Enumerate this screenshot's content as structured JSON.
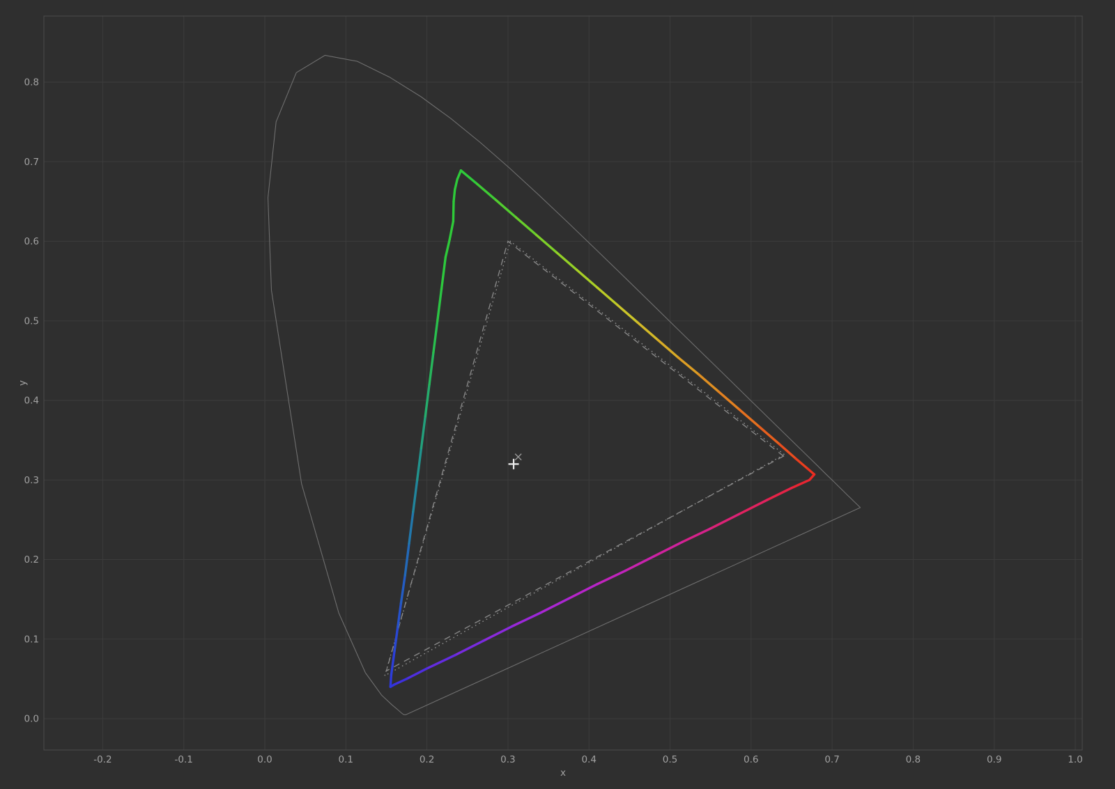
{
  "figure": {
    "background_color": "#2f2f2f",
    "grid_color": "#3c3c3c",
    "border_color": "#4b4b4b",
    "tick_label_color": "#a2a2a2",
    "locus_color": "#6f6f6f",
    "dashed_reference_color": "#878787",
    "dotted_reference_color": "#909090"
  },
  "chart_data": {
    "type": "line",
    "title": "",
    "xlabel": "x",
    "ylabel": "y",
    "xlim": [
      -0.273,
      1.009
    ],
    "ylim": [
      -0.039,
      0.883
    ],
    "grid": true,
    "legend": "none",
    "x_ticks": [
      -0.2,
      -0.1,
      0.0,
      0.1,
      0.2,
      0.3,
      0.4,
      0.5,
      0.6,
      0.7,
      0.8,
      0.9,
      1.0
    ],
    "x_tick_labels": [
      "-0.2",
      "-0.1",
      "0.0",
      "0.1",
      "0.2",
      "0.3",
      "0.4",
      "0.5",
      "0.6",
      "0.7",
      "0.8",
      "0.9",
      "1.0"
    ],
    "y_ticks": [
      0.0,
      0.1,
      0.2,
      0.3,
      0.4,
      0.5,
      0.6,
      0.7,
      0.8
    ],
    "y_tick_labels": [
      "0.0",
      "0.1",
      "0.2",
      "0.3",
      "0.4",
      "0.5",
      "0.6",
      "0.7",
      "0.8"
    ],
    "spectral_locus": [
      [
        0.1741,
        0.005
      ],
      [
        0.174,
        0.005
      ],
      [
        0.1738,
        0.0049
      ],
      [
        0.1736,
        0.0049
      ],
      [
        0.1714,
        0.0051
      ],
      [
        0.1689,
        0.0069
      ],
      [
        0.1644,
        0.0109
      ],
      [
        0.1566,
        0.0177
      ],
      [
        0.144,
        0.0297
      ],
      [
        0.1241,
        0.0578
      ],
      [
        0.0913,
        0.1327
      ],
      [
        0.0454,
        0.295
      ],
      [
        0.0082,
        0.5384
      ],
      [
        0.0039,
        0.6548
      ],
      [
        0.0139,
        0.7502
      ],
      [
        0.0389,
        0.812
      ],
      [
        0.0743,
        0.8338
      ],
      [
        0.1142,
        0.8262
      ],
      [
        0.1547,
        0.8059
      ],
      [
        0.1929,
        0.7816
      ],
      [
        0.2296,
        0.7543
      ],
      [
        0.2658,
        0.7243
      ],
      [
        0.3016,
        0.6923
      ],
      [
        0.3373,
        0.6589
      ],
      [
        0.3731,
        0.6245
      ],
      [
        0.4087,
        0.5896
      ],
      [
        0.4441,
        0.5547
      ],
      [
        0.4788,
        0.5202
      ],
      [
        0.5125,
        0.4866
      ],
      [
        0.5448,
        0.4544
      ],
      [
        0.5752,
        0.4242
      ],
      [
        0.6029,
        0.3965
      ],
      [
        0.627,
        0.3725
      ],
      [
        0.6482,
        0.3514
      ],
      [
        0.6658,
        0.334
      ],
      [
        0.6801,
        0.3197
      ],
      [
        0.6915,
        0.3083
      ],
      [
        0.7006,
        0.2993
      ],
      [
        0.7079,
        0.292
      ],
      [
        0.714,
        0.2859
      ],
      [
        0.719,
        0.2809
      ],
      [
        0.723,
        0.277
      ],
      [
        0.726,
        0.274
      ],
      [
        0.73,
        0.27
      ],
      [
        0.7347,
        0.2653
      ]
    ],
    "display_gamut": {
      "name": "measured display gamut",
      "primaries": {
        "red": {
          "x": 0.68,
          "y": 0.307
        },
        "green": {
          "x": 0.242,
          "y": 0.689
        },
        "blue": {
          "x": 0.155,
          "y": 0.04
        }
      },
      "outline": [
        [
          0.242,
          0.689,
          "#2fca3a"
        ],
        [
          0.262,
          0.672,
          "#3ecb34"
        ],
        [
          0.285,
          0.652,
          "#52cd2f"
        ],
        [
          0.31,
          0.63,
          "#68ce2b"
        ],
        [
          0.335,
          0.608,
          "#7ed029"
        ],
        [
          0.36,
          0.586,
          "#93d027"
        ],
        [
          0.385,
          0.564,
          "#a8cf26"
        ],
        [
          0.41,
          0.542,
          "#bccb26"
        ],
        [
          0.435,
          0.52,
          "#cbc52a"
        ],
        [
          0.46,
          0.498,
          "#d3b928"
        ],
        [
          0.485,
          0.476,
          "#d8ab26"
        ],
        [
          0.51,
          0.454,
          "#dc9d24"
        ],
        [
          0.535,
          0.433,
          "#df8f22"
        ],
        [
          0.56,
          0.411,
          "#e28020"
        ],
        [
          0.585,
          0.389,
          "#e5701f"
        ],
        [
          0.61,
          0.367,
          "#e75f1e"
        ],
        [
          0.635,
          0.345,
          "#e94d1e"
        ],
        [
          0.655,
          0.327,
          "#ea3e1e"
        ],
        [
          0.67,
          0.314,
          "#eb321f"
        ],
        [
          0.678,
          0.307,
          "#ea2a24"
        ],
        [
          0.672,
          0.3,
          "#e82532"
        ],
        [
          0.65,
          0.29,
          "#e52347"
        ],
        [
          0.62,
          0.275,
          "#e1225f"
        ],
        [
          0.585,
          0.257,
          "#dc2276"
        ],
        [
          0.55,
          0.239,
          "#d6228b"
        ],
        [
          0.515,
          0.222,
          "#d0229e"
        ],
        [
          0.48,
          0.204,
          "#c923ae"
        ],
        [
          0.445,
          0.186,
          "#c124bd"
        ],
        [
          0.41,
          0.169,
          "#b725ca"
        ],
        [
          0.375,
          0.151,
          "#ab27d3"
        ],
        [
          0.34,
          0.133,
          "#9c28d9"
        ],
        [
          0.305,
          0.116,
          "#8b2add"
        ],
        [
          0.27,
          0.098,
          "#782bdf"
        ],
        [
          0.235,
          0.08,
          "#642ce0"
        ],
        [
          0.2,
          0.063,
          "#4f2edf"
        ],
        [
          0.175,
          0.05,
          "#3f30de"
        ],
        [
          0.16,
          0.043,
          "#3433dc"
        ],
        [
          0.155,
          0.04,
          "#2e38d9"
        ],
        [
          0.156,
          0.055,
          "#2c3ed8"
        ],
        [
          0.16,
          0.085,
          "#2947d2"
        ],
        [
          0.164,
          0.115,
          "#2651cb"
        ],
        [
          0.168,
          0.145,
          "#245cc3"
        ],
        [
          0.173,
          0.18,
          "#2369b8"
        ],
        [
          0.178,
          0.22,
          "#2277ab"
        ],
        [
          0.183,
          0.26,
          "#21859c"
        ],
        [
          0.188,
          0.3,
          "#21938d"
        ],
        [
          0.193,
          0.34,
          "#23a07c"
        ],
        [
          0.198,
          0.38,
          "#25ac6c"
        ],
        [
          0.203,
          0.42,
          "#27b65c"
        ],
        [
          0.208,
          0.46,
          "#29bf4e"
        ],
        [
          0.213,
          0.5,
          "#2bc543"
        ],
        [
          0.218,
          0.54,
          "#2dc93d"
        ],
        [
          0.223,
          0.58,
          "#2eca3a"
        ],
        [
          0.228,
          0.602,
          "#2fcb39"
        ],
        [
          0.2325,
          0.625,
          "#2fcb39"
        ],
        [
          0.233,
          0.65,
          "#2eca39"
        ],
        [
          0.2345,
          0.665,
          "#2eca3a"
        ],
        [
          0.2375,
          0.678,
          "#2eca3a"
        ]
      ]
    },
    "reference_gamut_dashed": {
      "name": "sRGB reference (dashed)",
      "vertices": [
        [
          0.64,
          0.33
        ],
        [
          0.3,
          0.6
        ],
        [
          0.15,
          0.06
        ]
      ]
    },
    "reference_gamut_dotted": {
      "name": "reference (dotted)",
      "vertices": [
        [
          0.641,
          0.332
        ],
        [
          0.303,
          0.6
        ],
        [
          0.148,
          0.054
        ]
      ]
    },
    "markers": [
      {
        "symbol": "+",
        "name": "measured whitepoint",
        "x": 0.307,
        "y": 0.32,
        "color": "#ededed",
        "size": 15
      },
      {
        "symbol": "x",
        "name": "reference whitepoint D65",
        "x": 0.3127,
        "y": 0.329,
        "color": "#9a9a9a",
        "size": 9
      }
    ]
  }
}
